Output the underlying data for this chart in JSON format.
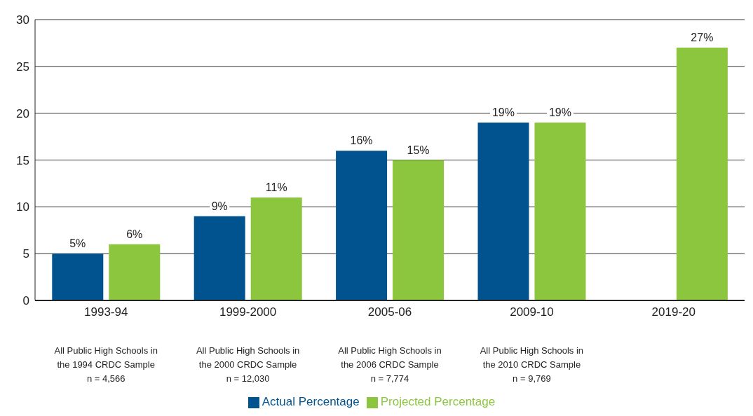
{
  "chart_data": {
    "type": "bar",
    "categories": [
      "1993-94",
      "1999-2000",
      "2005-06",
      "2009-10",
      "2019-20"
    ],
    "series": [
      {
        "name": "Actual Percentage",
        "color": "#00538f",
        "values": [
          5,
          9,
          16,
          19,
          null
        ],
        "value_labels": [
          "5%",
          "9%",
          "16%",
          "19%",
          null
        ]
      },
      {
        "name": "Projected Percentage",
        "color": "#8cc63f",
        "values": [
          6,
          11,
          15,
          19,
          27
        ],
        "value_labels": [
          "6%",
          "11%",
          "15%",
          "19%",
          "27%"
        ]
      }
    ],
    "ylim": [
      0,
      30
    ],
    "yticks": [
      0,
      5,
      10,
      15,
      20,
      25,
      30
    ],
    "grid": "y",
    "legend": "bottom",
    "annotations": [
      "All Public High Schools in\nthe 1994 CRDC Sample\nn = 4,566",
      "All Public High Schools in\nthe 2000 CRDC Sample\nn = 12,030",
      "All Public High Schools in\nthe 2006 CRDC Sample\nn = 7,774",
      "All Public High Schools in\nthe 2010 CRDC Sample\nn = 9,769"
    ]
  }
}
